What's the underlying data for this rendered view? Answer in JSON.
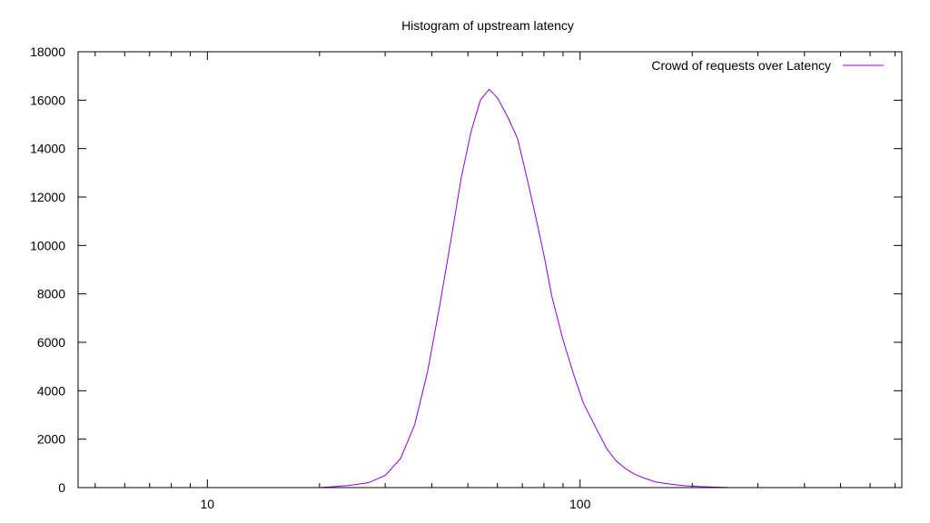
{
  "chart_data": {
    "type": "line",
    "title": "Histogram of upstream latency",
    "xlabel": "",
    "ylabel": "",
    "x_scale": "log",
    "xlim": [
      4.5,
      730
    ],
    "ylim": [
      0,
      18000
    ],
    "x_ticks": [
      {
        "value": 10,
        "label": "10"
      },
      {
        "value": 100,
        "label": "100"
      }
    ],
    "y_ticks": [
      {
        "value": 0,
        "label": "0"
      },
      {
        "value": 2000,
        "label": "2000"
      },
      {
        "value": 4000,
        "label": "4000"
      },
      {
        "value": 6000,
        "label": "6000"
      },
      {
        "value": 8000,
        "label": "8000"
      },
      {
        "value": 10000,
        "label": "10000"
      },
      {
        "value": 12000,
        "label": "12000"
      },
      {
        "value": 14000,
        "label": "14000"
      },
      {
        "value": 16000,
        "label": "16000"
      },
      {
        "value": 18000,
        "label": "18000"
      }
    ],
    "grid": false,
    "legend_position": "top-right",
    "colors": {
      "series": "#9400d3",
      "axes": "#000000",
      "background": "#ffffff"
    },
    "series": [
      {
        "name": "Crowd of requests over Latency",
        "points": [
          {
            "x": 20,
            "y": 0
          },
          {
            "x": 22,
            "y": 40
          },
          {
            "x": 24,
            "y": 90
          },
          {
            "x": 27,
            "y": 200
          },
          {
            "x": 30,
            "y": 500
          },
          {
            "x": 33,
            "y": 1200
          },
          {
            "x": 36,
            "y": 2600
          },
          {
            "x": 39,
            "y": 4800
          },
          {
            "x": 42,
            "y": 7500
          },
          {
            "x": 45,
            "y": 10200
          },
          {
            "x": 48,
            "y": 12800
          },
          {
            "x": 51,
            "y": 14700
          },
          {
            "x": 54,
            "y": 16000
          },
          {
            "x": 57,
            "y": 16450
          },
          {
            "x": 60,
            "y": 16100
          },
          {
            "x": 64,
            "y": 15300
          },
          {
            "x": 68,
            "y": 14400
          },
          {
            "x": 72,
            "y": 12800
          },
          {
            "x": 76,
            "y": 11200
          },
          {
            "x": 80,
            "y": 9600
          },
          {
            "x": 84,
            "y": 7900
          },
          {
            "x": 90,
            "y": 6100
          },
          {
            "x": 96,
            "y": 4700
          },
          {
            "x": 102,
            "y": 3500
          },
          {
            "x": 110,
            "y": 2500
          },
          {
            "x": 118,
            "y": 1600
          },
          {
            "x": 125,
            "y": 1100
          },
          {
            "x": 132,
            "y": 800
          },
          {
            "x": 140,
            "y": 550
          },
          {
            "x": 150,
            "y": 370
          },
          {
            "x": 160,
            "y": 230
          },
          {
            "x": 175,
            "y": 140
          },
          {
            "x": 190,
            "y": 80
          },
          {
            "x": 210,
            "y": 40
          },
          {
            "x": 230,
            "y": 20
          },
          {
            "x": 250,
            "y": 5
          }
        ]
      }
    ]
  }
}
